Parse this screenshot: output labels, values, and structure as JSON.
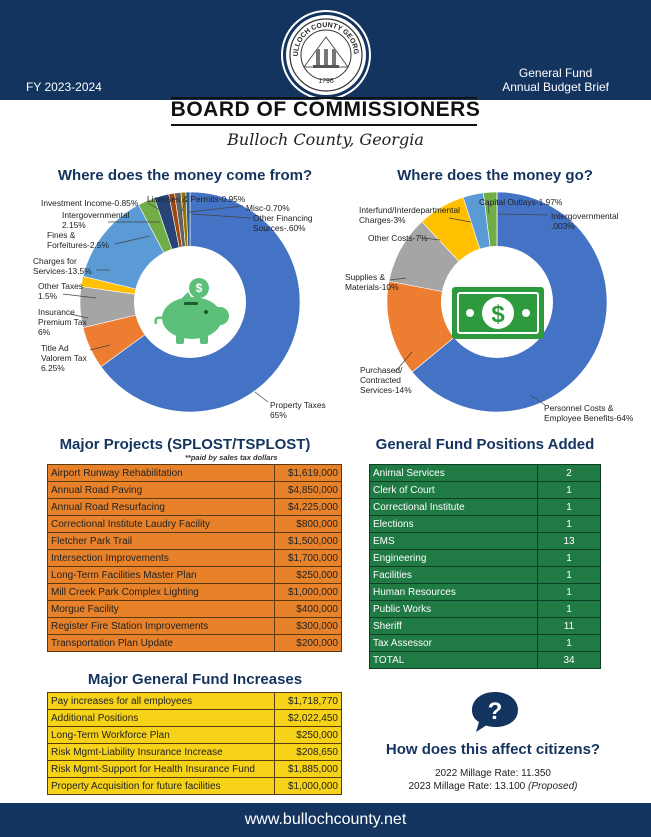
{
  "header": {
    "seal_text": "BULLOCH COUNTY GEORGIA",
    "seal_year": "1796",
    "fiscal_year": "FY 2023-2024",
    "brief_line1": "General Fund",
    "brief_line2": "Annual Budget Brief"
  },
  "title": "BOARD OF COMMISSIONERS",
  "subtitle": "Bulloch County, Georgia",
  "colors": {
    "navy": "#13345f",
    "orange": "#e8822a",
    "yellow": "#f6d318",
    "green": "#1f7a44",
    "blue": "#4472c4"
  },
  "revenue": {
    "heading": "Where does the money come from?",
    "labels": {
      "investment": "Investment Income-0.85%",
      "licenses": "Licenses & Permits-0.95%",
      "misc": "Misc-0.70%",
      "other_financing": "Other Financing",
      "other_financing2": "Sources-.60%",
      "intergov": "Intergovernmental",
      "intergov_pct": "2.15%",
      "fines1": "Fines &",
      "fines2": "Forfeitures-2.5%",
      "charges1": "Charges for",
      "charges2": "Services-13.5%",
      "other_taxes1": "Other Taxes",
      "other_taxes2": "1.5%",
      "ins1": "Insurance",
      "ins2": "Premium Tax",
      "ins3": "6%",
      "tav1": "Title Ad",
      "tav2": "Valorem Tax",
      "tav3": "6.25%",
      "property1": "Property Taxes",
      "property2": "65%"
    }
  },
  "expense": {
    "heading": "Where does the money go?",
    "labels": {
      "interfund1": "Interfund/Interdepartmental",
      "interfund2": "Charges-3%",
      "capital": "Capital Outlays-1.97%",
      "intergov1": "Intergovernmental",
      "intergov2": ".003%",
      "other": "Other Costs-7%",
      "supplies1": "Supplies &",
      "supplies2": "Materials-10%",
      "purchased1": "Purchased/",
      "purchased2": "Contracted",
      "purchased3": "Services-14%",
      "personnel1": "Personnel Costs &",
      "personnel2": "Employee Benefits-64%"
    }
  },
  "chart_data": [
    {
      "type": "pie",
      "title": "Where does the money come from?",
      "categories": [
        "Property Taxes",
        "Title Ad Valorem Tax",
        "Insurance Premium Tax",
        "Other Taxes",
        "Charges for Services",
        "Fines & Forfeitures",
        "Intergovernmental",
        "Investment Income",
        "Licenses & Permits",
        "Misc",
        "Other Financing Sources"
      ],
      "values": [
        65,
        6.25,
        6,
        1.5,
        13.5,
        2.5,
        2.15,
        0.85,
        0.95,
        0.7,
        0.6
      ],
      "colors": [
        "#4472c4",
        "#ed7d31",
        "#a5a5a5",
        "#ffc000",
        "#5b9bd5",
        "#70ad47",
        "#264478",
        "#9e480e",
        "#636363",
        "#997300",
        "#255e91"
      ]
    },
    {
      "type": "pie",
      "title": "Where does the money go?",
      "categories": [
        "Personnel Costs & Employee Benefits",
        "Purchased/Contracted Services",
        "Supplies & Materials",
        "Other Costs",
        "Interfund/Interdepartmental Charges",
        "Capital Outlays",
        "Intergovernmental"
      ],
      "values": [
        64,
        14,
        10,
        7,
        3,
        1.97,
        0.003
      ],
      "colors": [
        "#4472c4",
        "#ed7d31",
        "#a5a5a5",
        "#ffc000",
        "#5b9bd5",
        "#70ad47",
        "#264478"
      ]
    }
  ],
  "projects": {
    "heading": "Major Projects (SPLOST/TSPLOST)",
    "note": "**paid by sales tax dollars",
    "rows": [
      [
        "Airport Runway Rehabilitation",
        "$1,619,000"
      ],
      [
        "Annual Road Paving",
        "$4,850,000"
      ],
      [
        "Annual Road Resurfacing",
        "$4,225,000"
      ],
      [
        "Correctional Institute Laudry Facility",
        "$800,000"
      ],
      [
        "Fletcher Park Trail",
        "$1,500,000"
      ],
      [
        "Intersection Improvements",
        "$1,700,000"
      ],
      [
        "Long-Term Facilities Master Plan",
        "$250,000"
      ],
      [
        "Mill Creek Park Complex Lighting",
        "$1,000,000"
      ],
      [
        "Morgue Facility",
        "$400,000"
      ],
      [
        "Register Fire Station Improvements",
        "$300,000"
      ],
      [
        "Transportation Plan Update",
        "$200,000"
      ]
    ]
  },
  "positions": {
    "heading": "General Fund Positions Added",
    "rows": [
      [
        "Animal Services",
        "2"
      ],
      [
        "Clerk of Court",
        "1"
      ],
      [
        "Correctional Institute",
        "1"
      ],
      [
        "Elections",
        "1"
      ],
      [
        "EMS",
        "13"
      ],
      [
        "Engineering",
        "1"
      ],
      [
        "Facilities",
        "1"
      ],
      [
        "Human Resources",
        "1"
      ],
      [
        "Public Works",
        "1"
      ],
      [
        "Sheriff",
        "11"
      ],
      [
        "Tax Assessor",
        "1"
      ],
      [
        "TOTAL",
        "34"
      ]
    ]
  },
  "increases": {
    "heading": "Major General Fund Increases",
    "rows": [
      [
        "Pay increases for all employees",
        "$1,718,770"
      ],
      [
        "Additional Positions",
        "$2,022,450"
      ],
      [
        "Long-Term Workforce Plan",
        "$250,000"
      ],
      [
        "Risk Mgmt-Liability Insurance Increase",
        "$208,650"
      ],
      [
        "Risk Mgmt-Support for Health Insurance Fund",
        "$1,885,000"
      ],
      [
        "Property Acquisition for future facilities",
        "$1,000,000"
      ]
    ]
  },
  "citizens": {
    "icon_text": "?",
    "heading": "How does this affect citizens?",
    "rate_2022": "2022 Millage Rate: 11.350",
    "rate_2023": "2023 Millage Rate: 13.100",
    "rate_2023_note": "(Proposed)"
  },
  "footer": {
    "url": "www.bullochcounty.net"
  }
}
